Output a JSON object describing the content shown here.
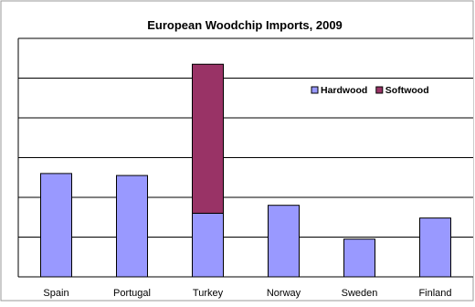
{
  "chart_data": {
    "type": "bar",
    "stacked": true,
    "title": "European Woodchip Imports, 2009",
    "xlabel": "",
    "ylabel": "",
    "categories": [
      "Spain",
      "Portugal",
      "Turkey",
      "Norway",
      "Sweden",
      "Finland"
    ],
    "series": [
      {
        "name": "Hardwood",
        "color": "#9999ff",
        "values": [
          2.6,
          2.55,
          1.6,
          1.8,
          0.95,
          1.48
        ]
      },
      {
        "name": "Softwood",
        "color": "#993366",
        "values": [
          0,
          0,
          3.75,
          0,
          0,
          0
        ]
      }
    ],
    "ylim": [
      0,
      6
    ],
    "gridlines": [
      1,
      2,
      3,
      4,
      5,
      6
    ],
    "grid": true,
    "y_tick_labels_visible": false,
    "legend_position": "top-right",
    "plot_background": "#ffffff",
    "bar_border_color": "#000000"
  }
}
